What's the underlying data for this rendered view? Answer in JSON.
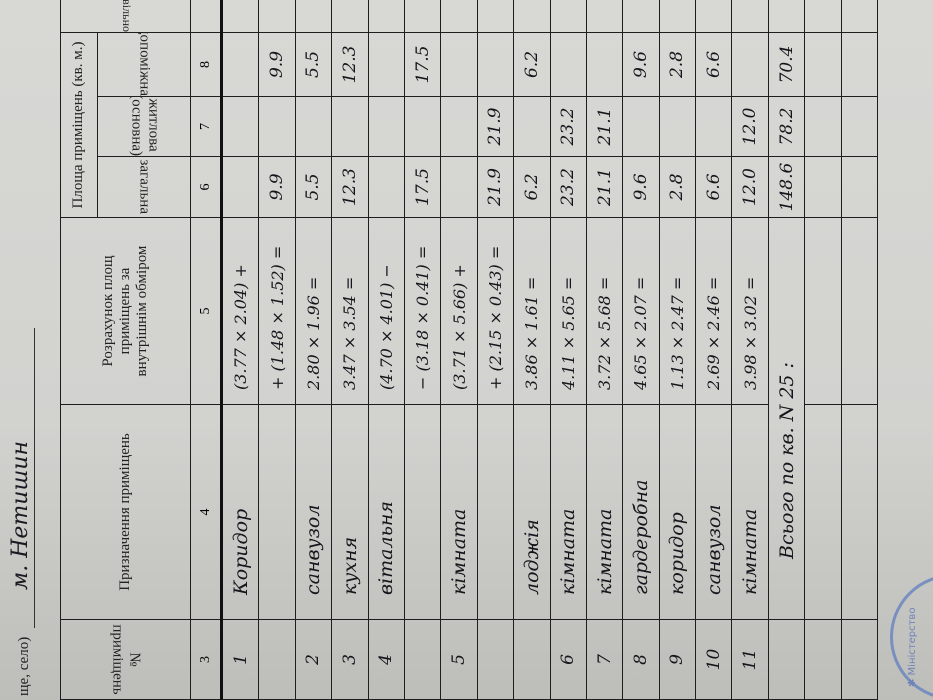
{
  "header_line": {
    "label": "ще, село)",
    "value": "м. Нетишин"
  },
  "columns": {
    "room_no": "№ приміщень",
    "purpose": "Призначення приміщень",
    "calc": "Розрахунок площ приміщень за внутрішнім обміром",
    "area_group": "Площа приміщень (кв. м.)",
    "total": "загальна",
    "living": "житлова (основна)",
    "auxiliary": "допоміжна",
    "unauthorized": "самовільно",
    "numbers": [
      "3",
      "4",
      "5",
      "6",
      "7",
      "8",
      ""
    ]
  },
  "rows": [
    {
      "no": "1",
      "name": "Коридор",
      "calc": "(3.77 × 2.04) +",
      "total": "",
      "living": "",
      "aux": ""
    },
    {
      "no": "",
      "name": "",
      "calc": "+ (1.48 × 1.52) =",
      "total": "9.9",
      "living": "",
      "aux": "9.9"
    },
    {
      "no": "2",
      "name": "санвузол",
      "calc": "2.80 × 1.96 =",
      "total": "5.5",
      "living": "",
      "aux": "5.5"
    },
    {
      "no": "3",
      "name": "кухня",
      "calc": "3.47 × 3.54 =",
      "total": "12.3",
      "living": "",
      "aux": "12.3"
    },
    {
      "no": "4",
      "name": "вітальня",
      "calc": "(4.70 × 4.01) −",
      "total": "",
      "living": "",
      "aux": ""
    },
    {
      "no": "",
      "name": "",
      "calc": "− (3.18 × 0.41) =",
      "total": "17.5",
      "living": "",
      "aux": "17.5"
    },
    {
      "no": "5",
      "name": "кімната",
      "calc": "(3.71 × 5.66) +",
      "total": "",
      "living": "",
      "aux": ""
    },
    {
      "no": "",
      "name": "",
      "calc": "+ (2.15 × 0.43) =",
      "total": "21.9",
      "living": "21.9",
      "aux": ""
    },
    {
      "no": "",
      "name": "лоджія",
      "calc": "3.86 × 1.61 =",
      "total": "6.2",
      "living": "",
      "aux": "6.2"
    },
    {
      "no": "6",
      "name": "кімната",
      "calc": "4.11 × 5.65 =",
      "total": "23.2",
      "living": "23.2",
      "aux": ""
    },
    {
      "no": "7",
      "name": "кімната",
      "calc": "3.72 × 5.68 =",
      "total": "21.1",
      "living": "21.1",
      "aux": ""
    },
    {
      "no": "8",
      "name": "гардеробна",
      "calc": "4.65 × 2.07 =",
      "total": "9.6",
      "living": "",
      "aux": "9.6"
    },
    {
      "no": "9",
      "name": "коридор",
      "calc": "1.13 × 2.47 =",
      "total": "2.8",
      "living": "",
      "aux": "2.8"
    },
    {
      "no": "10",
      "name": "санвузол",
      "calc": "2.69 × 2.46 =",
      "total": "6.6",
      "living": "",
      "aux": "6.6"
    },
    {
      "no": "11",
      "name": "кімната",
      "calc": "3.98 × 3.02 =",
      "total": "12.0",
      "living": "12.0",
      "aux": ""
    }
  ],
  "total_row": {
    "label": "Всього по кв. N 25 :",
    "total": "148.6",
    "living": "78.2",
    "aux": "70.4"
  },
  "stamp": {
    "text": "Міністерство ... архітектурно-будівельн...",
    "color": "#5a7ac0"
  }
}
